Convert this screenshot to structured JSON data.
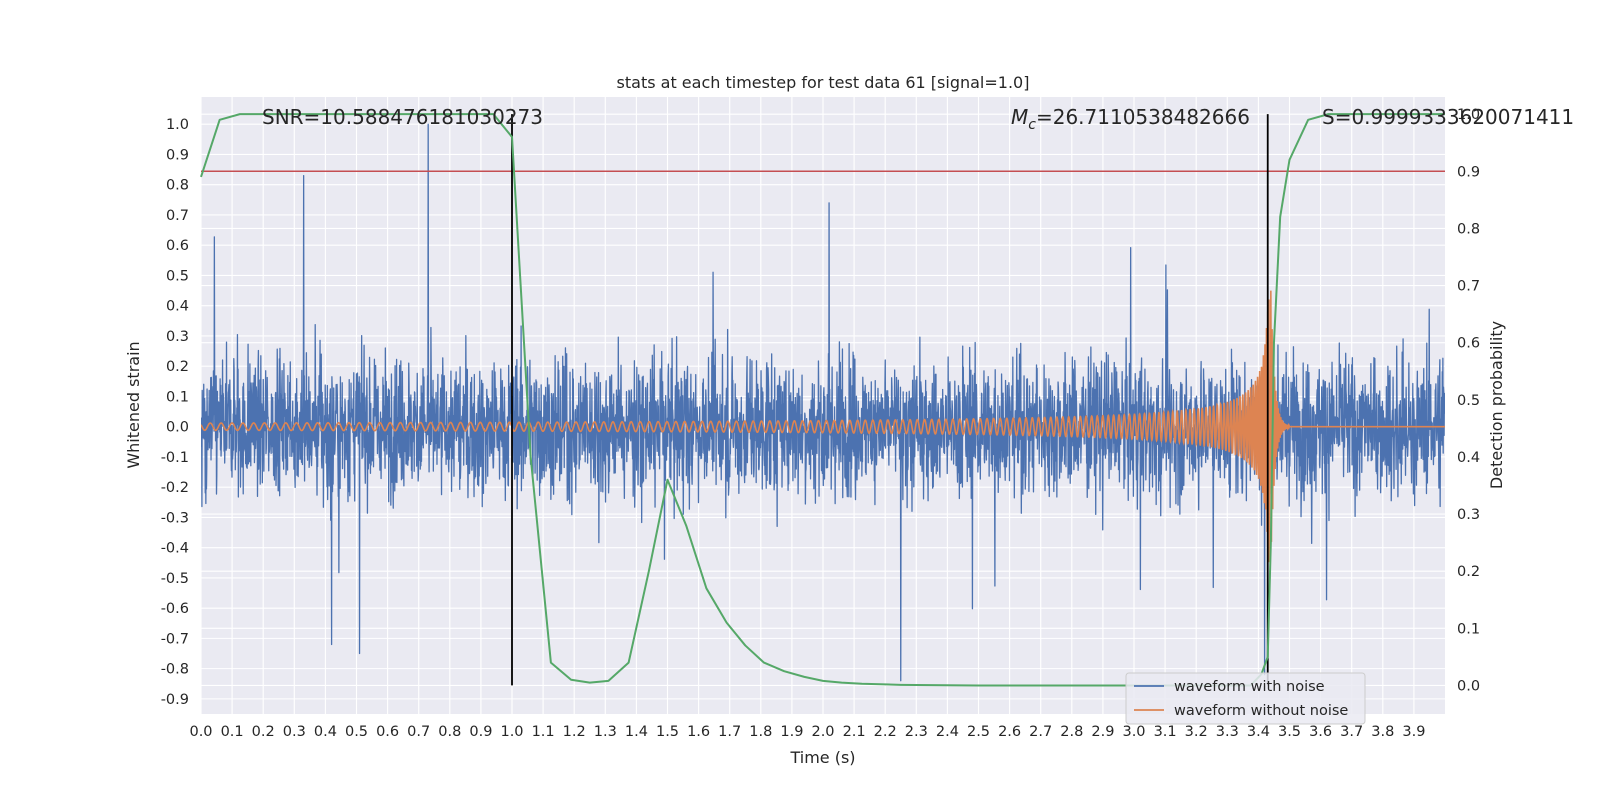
{
  "chart_data": {
    "type": "line",
    "title": "stats at each timestep for test data 61 [signal=1.0]",
    "xlabel": "Time (s)",
    "ylabel": "Whitened strain",
    "ylabel_right": "Detection probability",
    "xlim": [
      0.0,
      4.0
    ],
    "ylim": [
      -0.95,
      1.09
    ],
    "ylim_right": [
      -0.05,
      1.03
    ],
    "xticks": [
      "0.0",
      "0.1",
      "0.2",
      "0.3",
      "0.4",
      "0.5",
      "0.6",
      "0.7",
      "0.8",
      "0.9",
      "1.0",
      "1.1",
      "1.2",
      "1.3",
      "1.4",
      "1.5",
      "1.6",
      "1.7",
      "1.8",
      "1.9",
      "2.0",
      "2.1",
      "2.2",
      "2.3",
      "2.4",
      "2.5",
      "2.6",
      "2.7",
      "2.8",
      "2.9",
      "3.0",
      "3.1",
      "3.2",
      "3.3",
      "3.4",
      "3.5",
      "3.6",
      "3.7",
      "3.8",
      "3.9"
    ],
    "yticks_left": [
      "1.0",
      "0.9",
      "0.8",
      "0.7",
      "0.6",
      "0.5",
      "0.4",
      "0.3",
      "0.2",
      "0.1",
      "0.0",
      "-0.1",
      "-0.2",
      "-0.3",
      "-0.4",
      "-0.5",
      "-0.6",
      "-0.7",
      "-0.8",
      "-0.9"
    ],
    "yticks_right": [
      "1.0",
      "0.9",
      "0.8",
      "0.7",
      "0.6",
      "0.5",
      "0.4",
      "0.3",
      "0.2",
      "0.1",
      "0.0"
    ],
    "grid": true,
    "legend_position": "lower-right",
    "annotations": {
      "snr": "SNR=10.588476181030273",
      "mc_symbol": "M",
      "mc_sub": "c",
      "mc_value": "=26.7110538482666",
      "s": "S=0.9999333620071411"
    },
    "threshold_line": {
      "y_right": 0.9,
      "color": "#c44e52"
    },
    "vertical_lines": {
      "x": [
        1.0,
        3.43
      ],
      "color": "#000000"
    },
    "series": [
      {
        "name": "waveform with noise",
        "color": "#4c72b0",
        "axis": "left",
        "description": "dense noisy whitened strain, roughly uniform amplitude ~±0.5 with spikes",
        "peaks": [
          {
            "x": 0.33,
            "y": 0.83
          },
          {
            "x": 0.73,
            "y": 1.0
          },
          {
            "x": 2.02,
            "y": 0.74
          },
          {
            "x": 3.42,
            "y": 0.7
          },
          {
            "x": 0.42,
            "y": -0.72
          },
          {
            "x": 0.51,
            "y": -0.75
          },
          {
            "x": 2.25,
            "y": -0.84
          },
          {
            "x": 3.42,
            "y": -0.82
          }
        ]
      },
      {
        "name": "waveform without noise",
        "color": "#dd8452",
        "axis": "left",
        "chirp": {
          "t_merge": 3.44,
          "amp_start": 0.012,
          "amp_peak": 0.45,
          "ringdown_end": 3.5
        }
      },
      {
        "name": "",
        "color": "#55a868",
        "axis": "right",
        "x": [
          0.0,
          0.06,
          0.125,
          0.25,
          0.375,
          0.5,
          0.625,
          0.75,
          0.875,
          0.94,
          1.0,
          1.06,
          1.125,
          1.19,
          1.25,
          1.31,
          1.375,
          1.44,
          1.5,
          1.56,
          1.625,
          1.69,
          1.75,
          1.81,
          1.875,
          1.94,
          2.0,
          2.06,
          2.125,
          2.25,
          2.5,
          2.75,
          3.0,
          3.125,
          3.25,
          3.3,
          3.375,
          3.41,
          3.43,
          3.44,
          3.45,
          3.47,
          3.5,
          3.56,
          3.625,
          3.75,
          3.875,
          4.0
        ],
        "y": [
          0.89,
          0.99,
          1.0,
          1.0,
          1.0,
          1.0,
          1.0,
          1.0,
          1.0,
          1.0,
          0.96,
          0.4,
          0.04,
          0.01,
          0.005,
          0.008,
          0.04,
          0.2,
          0.36,
          0.28,
          0.17,
          0.11,
          0.07,
          0.04,
          0.025,
          0.015,
          0.008,
          0.005,
          0.003,
          0.001,
          0.0,
          0.0,
          0.0,
          0.0,
          0.0,
          0.0,
          0.0,
          0.02,
          0.05,
          0.25,
          0.6,
          0.82,
          0.92,
          0.99,
          1.0,
          1.0,
          1.0,
          1.0
        ]
      }
    ]
  }
}
